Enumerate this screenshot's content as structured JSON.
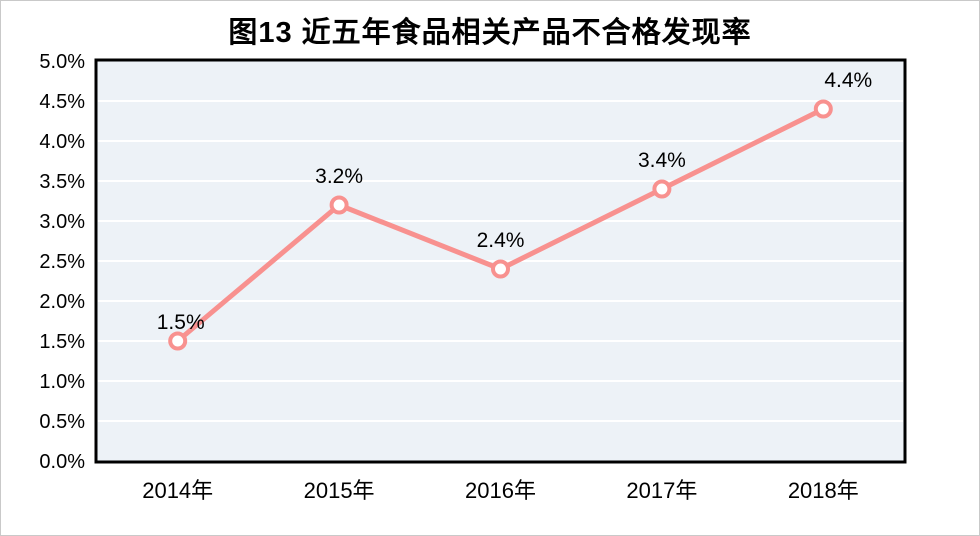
{
  "chart_data": {
    "type": "line",
    "title": "图13 近五年食品相关产品不合格发现率",
    "categories": [
      "2014年",
      "2015年",
      "2016年",
      "2017年",
      "2018年"
    ],
    "values": [
      1.5,
      3.2,
      2.4,
      3.4,
      4.4
    ],
    "point_labels": [
      "1.5%",
      "3.2%",
      "2.4%",
      "3.4%",
      "4.4%"
    ],
    "xlabel": "",
    "ylabel": "",
    "ylim": [
      0,
      5
    ],
    "ytick_step": 0.5,
    "ytick_labels": [
      "0.0%",
      "0.5%",
      "1.0%",
      "1.5%",
      "2.0%",
      "2.5%",
      "3.0%",
      "3.5%",
      "4.0%",
      "4.5%",
      "5.0%"
    ],
    "grid": "horizontal",
    "legend": "none",
    "colors": {
      "line": "#F8918F",
      "marker_fill": "#FFFFFF",
      "plot_background": "#EDF2F7",
      "gridline": "#FFFFFF",
      "plot_border": "#000000",
      "text": "#000000"
    }
  }
}
